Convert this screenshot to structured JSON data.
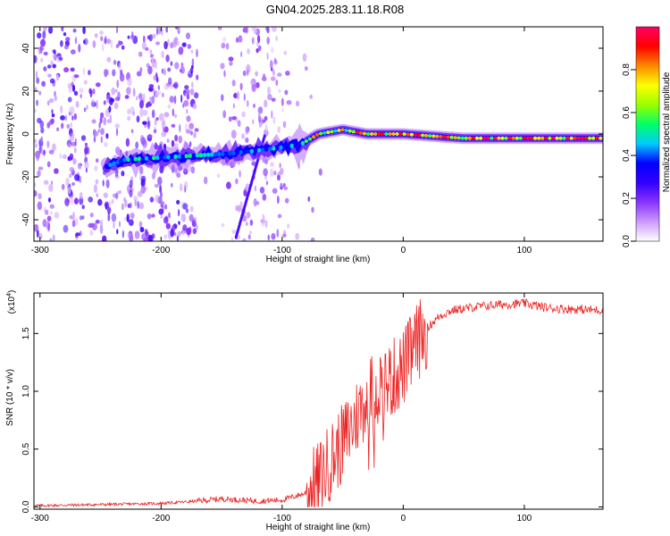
{
  "title": "GN04.2025.283.11.18.R08",
  "chart_data": [
    {
      "type": "heatmap",
      "xlabel": "Height of straight line (km)",
      "ylabel": "Frequency (Hz)",
      "xlim": [
        -305,
        165
      ],
      "ylim": [
        -50,
        50
      ],
      "x_ticks": [
        -300,
        -200,
        -100,
        0,
        100
      ],
      "y_ticks": [
        -40,
        -20,
        0,
        20,
        40
      ],
      "colorbar": {
        "label": "Normalized spectral amplitude",
        "range": [
          0,
          1
        ],
        "ticks": [
          "0.0",
          "0.2",
          "0.4",
          "0.6",
          "0.8"
        ],
        "colors": [
          "#ffffff",
          "#cc99ff",
          "#8833ff",
          "#3300ff",
          "#0000ff",
          "#00ccff",
          "#00ff66",
          "#99ff00",
          "#ffff00",
          "#ff8800",
          "#ff0000",
          "#ff0066"
        ]
      },
      "ridge": [
        {
          "x": -245,
          "y": -15
        },
        {
          "x": -230,
          "y": -12
        },
        {
          "x": -200,
          "y": -11
        },
        {
          "x": -170,
          "y": -10
        },
        {
          "x": -140,
          "y": -9
        },
        {
          "x": -110,
          "y": -7
        },
        {
          "x": -85,
          "y": -5
        },
        {
          "x": -70,
          "y": 0
        },
        {
          "x": -50,
          "y": 2
        },
        {
          "x": -30,
          "y": 0
        },
        {
          "x": 0,
          "y": 0
        },
        {
          "x": 50,
          "y": -2
        },
        {
          "x": 100,
          "y": -2
        },
        {
          "x": 165,
          "y": -2
        }
      ]
    },
    {
      "type": "line",
      "xlabel": "Height of straight line (km)",
      "ylabel": "SNR (10 * v/v)",
      "y_multiplier": "(x10",
      "y_multiplier_exp": "4",
      "y_multiplier_close": ")",
      "xlim": [
        -305,
        165
      ],
      "ylim": [
        -0.02,
        1.85
      ],
      "x_ticks": [
        -300,
        -200,
        -100,
        0,
        100
      ],
      "y_ticks": [
        "0.0",
        "0.5",
        "1.0",
        "1.5"
      ],
      "line_color": "#ee2222",
      "series": [
        {
          "x": [
            -305,
            -250,
            -200,
            -170,
            -150,
            -120,
            -100,
            -80,
            -70,
            -60,
            -50,
            -40,
            -30,
            -20,
            -10,
            0,
            10,
            20,
            30,
            40,
            60,
            80,
            100,
            120,
            140,
            165
          ],
          "y": [
            0.01,
            0.02,
            0.03,
            0.05,
            0.07,
            0.05,
            0.06,
            0.12,
            0.22,
            0.4,
            0.55,
            0.75,
            0.95,
            1.05,
            1.1,
            1.2,
            1.4,
            1.55,
            1.65,
            1.7,
            1.73,
            1.75,
            1.76,
            1.72,
            1.71,
            1.7
          ]
        }
      ]
    }
  ]
}
